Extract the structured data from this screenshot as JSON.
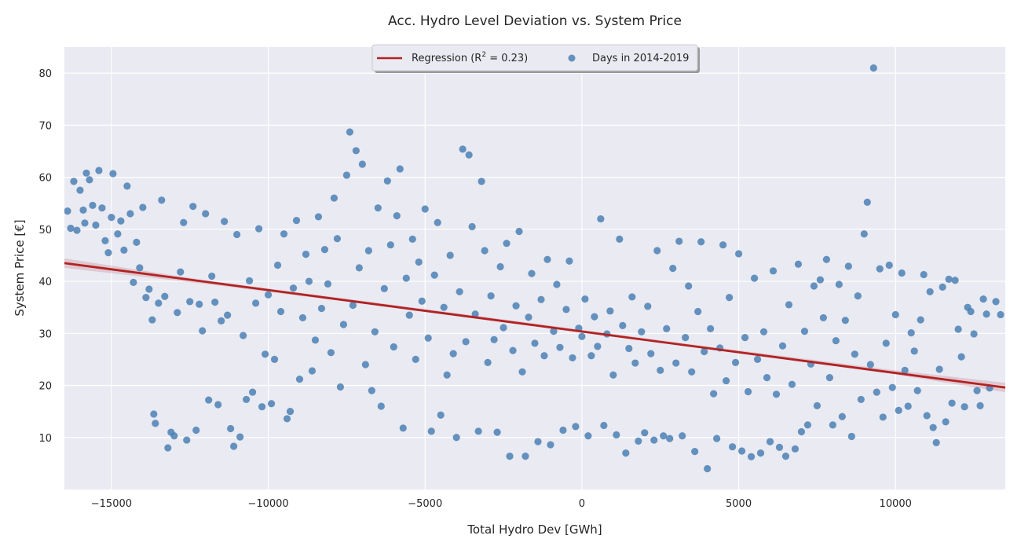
{
  "chart_data": {
    "type": "scatter",
    "title": "Acc. Hydro Level Deviation vs. System Price",
    "xlabel": "Total Hydro Dev [GWh]",
    "ylabel": "System Price [€]",
    "xlim": [
      -16500,
      13500
    ],
    "ylim": [
      0,
      85
    ],
    "xticks": [
      -15000,
      -10000,
      -5000,
      0,
      5000,
      10000
    ],
    "xtick_labels": [
      "−15000",
      "−10000",
      "−5000",
      "0",
      "5000",
      "10000"
    ],
    "yticks": [
      10,
      20,
      30,
      40,
      50,
      60,
      70,
      80
    ],
    "ytick_labels": [
      "10",
      "20",
      "30",
      "40",
      "50",
      "60",
      "70",
      "80"
    ],
    "grid": true,
    "legend_position": "top-center",
    "regression": {
      "label_prefix": "Regression (R",
      "label_sup": "2",
      "label_suffix": " = 0.23)",
      "color": "#b22222",
      "band_color": "#c87c84",
      "line": [
        [
          -16500,
          43.5
        ],
        [
          13500,
          19.6
        ]
      ],
      "band": [
        [
          -16500,
          44.4,
          42.6
        ],
        [
          -12000,
          40.2,
          39.5
        ],
        [
          -3000,
          33.1,
          32.7
        ],
        [
          4000,
          27.5,
          27.0
        ],
        [
          10000,
          22.9,
          22.1
        ],
        [
          13500,
          20.5,
          18.7
        ]
      ]
    },
    "scatter_series": {
      "name": "Days in 2014-2019",
      "color": "#4c80b4",
      "points": [
        [
          -16400,
          53.5
        ],
        [
          -16300,
          50.2
        ],
        [
          -16200,
          59.2
        ],
        [
          -16100,
          49.8
        ],
        [
          -16000,
          57.5
        ],
        [
          -15900,
          53.7
        ],
        [
          -15850,
          51.2
        ],
        [
          -15800,
          60.8
        ],
        [
          -15700,
          59.5
        ],
        [
          -15600,
          54.6
        ],
        [
          -15500,
          50.8
        ],
        [
          -15400,
          61.3
        ],
        [
          -15300,
          54.1
        ],
        [
          -15200,
          47.8
        ],
        [
          -15100,
          45.5
        ],
        [
          -15000,
          52.3
        ],
        [
          -14950,
          60.7
        ],
        [
          -14800,
          49.1
        ],
        [
          -14700,
          51.6
        ],
        [
          -14600,
          46.0
        ],
        [
          -14500,
          58.3
        ],
        [
          -14400,
          53.0
        ],
        [
          -14300,
          39.8
        ],
        [
          -14200,
          47.5
        ],
        [
          -14100,
          42.6
        ],
        [
          -14000,
          54.2
        ],
        [
          -13900,
          36.9
        ],
        [
          -13800,
          38.5
        ],
        [
          -13700,
          32.6
        ],
        [
          -13650,
          14.5
        ],
        [
          -13600,
          12.7
        ],
        [
          -13500,
          35.8
        ],
        [
          -13400,
          55.6
        ],
        [
          -13300,
          37.1
        ],
        [
          -13200,
          8.0
        ],
        [
          -13100,
          11.0
        ],
        [
          -13000,
          10.3
        ],
        [
          -12900,
          34.0
        ],
        [
          -12800,
          41.8
        ],
        [
          -12700,
          51.3
        ],
        [
          -12600,
          9.5
        ],
        [
          -12500,
          36.1
        ],
        [
          -12400,
          54.4
        ],
        [
          -12300,
          11.4
        ],
        [
          -12200,
          35.6
        ],
        [
          -12100,
          30.5
        ],
        [
          -12000,
          53.0
        ],
        [
          -11900,
          17.2
        ],
        [
          -11800,
          41.0
        ],
        [
          -11700,
          36.0
        ],
        [
          -11600,
          16.3
        ],
        [
          -11500,
          32.4
        ],
        [
          -11400,
          51.5
        ],
        [
          -11300,
          33.5
        ],
        [
          -11200,
          11.7
        ],
        [
          -11100,
          8.3
        ],
        [
          -11000,
          49.0
        ],
        [
          -10900,
          10.1
        ],
        [
          -10800,
          29.6
        ],
        [
          -10700,
          17.3
        ],
        [
          -10600,
          40.1
        ],
        [
          -10500,
          18.7
        ],
        [
          -10400,
          35.8
        ],
        [
          -10300,
          50.1
        ],
        [
          -10200,
          15.9
        ],
        [
          -10100,
          26.0
        ],
        [
          -10000,
          37.4
        ],
        [
          -9900,
          16.5
        ],
        [
          -9800,
          25.0
        ],
        [
          -9700,
          43.1
        ],
        [
          -9600,
          34.2
        ],
        [
          -9500,
          49.1
        ],
        [
          -9400,
          13.6
        ],
        [
          -9300,
          15.0
        ],
        [
          -9200,
          38.7
        ],
        [
          -9100,
          51.7
        ],
        [
          -9000,
          21.2
        ],
        [
          -8900,
          33.0
        ],
        [
          -8800,
          45.2
        ],
        [
          -8700,
          40.0
        ],
        [
          -8600,
          22.8
        ],
        [
          -8500,
          28.7
        ],
        [
          -8400,
          52.4
        ],
        [
          -8300,
          34.8
        ],
        [
          -8200,
          46.1
        ],
        [
          -8100,
          39.5
        ],
        [
          -8000,
          26.3
        ],
        [
          -7900,
          56.0
        ],
        [
          -7800,
          48.2
        ],
        [
          -7700,
          19.7
        ],
        [
          -7600,
          31.7
        ],
        [
          -7500,
          60.4
        ],
        [
          -7400,
          68.7
        ],
        [
          -7300,
          35.4
        ],
        [
          -7200,
          65.1
        ],
        [
          -7100,
          42.6
        ],
        [
          -7000,
          62.5
        ],
        [
          -6900,
          24.0
        ],
        [
          -6800,
          45.9
        ],
        [
          -6700,
          19.0
        ],
        [
          -6600,
          30.3
        ],
        [
          -6500,
          54.1
        ],
        [
          -6400,
          16.0
        ],
        [
          -6300,
          38.6
        ],
        [
          -6200,
          59.3
        ],
        [
          -6100,
          47.0
        ],
        [
          -6000,
          27.4
        ],
        [
          -5900,
          52.6
        ],
        [
          -5800,
          61.6
        ],
        [
          -5700,
          11.8
        ],
        [
          -5600,
          40.6
        ],
        [
          -5500,
          33.5
        ],
        [
          -5400,
          48.1
        ],
        [
          -5300,
          25.0
        ],
        [
          -5200,
          43.7
        ],
        [
          -5100,
          36.2
        ],
        [
          -5000,
          53.9
        ],
        [
          -4900,
          29.1
        ],
        [
          -4800,
          11.2
        ],
        [
          -4700,
          41.2
        ],
        [
          -4600,
          51.3
        ],
        [
          -4500,
          14.3
        ],
        [
          -4400,
          35.0
        ],
        [
          -4300,
          22.0
        ],
        [
          -4200,
          45.0
        ],
        [
          -4100,
          26.1
        ],
        [
          -4000,
          10.0
        ],
        [
          -3900,
          38.0
        ],
        [
          -3800,
          65.4
        ],
        [
          -3700,
          28.4
        ],
        [
          -3600,
          64.3
        ],
        [
          -3500,
          50.5
        ],
        [
          -3400,
          33.7
        ],
        [
          -3300,
          11.2
        ],
        [
          -3200,
          59.2
        ],
        [
          -3100,
          45.9
        ],
        [
          -3000,
          24.4
        ],
        [
          -2900,
          37.2
        ],
        [
          -2800,
          28.8
        ],
        [
          -2700,
          11.0
        ],
        [
          -2600,
          42.8
        ],
        [
          -2500,
          31.1
        ],
        [
          -2400,
          47.3
        ],
        [
          -2300,
          6.4
        ],
        [
          -2200,
          26.7
        ],
        [
          -2100,
          35.3
        ],
        [
          -2000,
          49.6
        ],
        [
          -1900,
          22.6
        ],
        [
          -1800,
          6.4
        ],
        [
          -1700,
          33.1
        ],
        [
          -1600,
          41.5
        ],
        [
          -1500,
          28.1
        ],
        [
          -1400,
          9.2
        ],
        [
          -1300,
          36.5
        ],
        [
          -1200,
          25.7
        ],
        [
          -1100,
          44.2
        ],
        [
          -1000,
          8.6
        ],
        [
          -900,
          30.4
        ],
        [
          -800,
          39.4
        ],
        [
          -700,
          27.3
        ],
        [
          -600,
          11.4
        ],
        [
          -500,
          34.6
        ],
        [
          -400,
          43.9
        ],
        [
          -300,
          25.3
        ],
        [
          -200,
          12.1
        ],
        [
          -100,
          31.0
        ],
        [
          0,
          29.4
        ],
        [
          100,
          36.6
        ],
        [
          200,
          10.3
        ],
        [
          300,
          25.7
        ],
        [
          400,
          33.2
        ],
        [
          500,
          27.5
        ],
        [
          600,
          52.0
        ],
        [
          700,
          12.3
        ],
        [
          800,
          29.9
        ],
        [
          900,
          34.3
        ],
        [
          1000,
          22.0
        ],
        [
          1100,
          10.5
        ],
        [
          1200,
          48.1
        ],
        [
          1300,
          31.5
        ],
        [
          1400,
          7.0
        ],
        [
          1500,
          27.1
        ],
        [
          1600,
          37.0
        ],
        [
          1700,
          24.3
        ],
        [
          1800,
          9.3
        ],
        [
          1900,
          30.3
        ],
        [
          2000,
          10.9
        ],
        [
          2100,
          35.2
        ],
        [
          2200,
          26.1
        ],
        [
          2300,
          9.5
        ],
        [
          2400,
          45.9
        ],
        [
          2500,
          22.9
        ],
        [
          2600,
          10.3
        ],
        [
          2700,
          30.9
        ],
        [
          2800,
          9.8
        ],
        [
          2900,
          42.5
        ],
        [
          3000,
          24.3
        ],
        [
          3100,
          47.7
        ],
        [
          3200,
          10.3
        ],
        [
          3300,
          29.2
        ],
        [
          3400,
          39.1
        ],
        [
          3500,
          22.6
        ],
        [
          3600,
          7.3
        ],
        [
          3700,
          34.2
        ],
        [
          3800,
          47.6
        ],
        [
          3900,
          26.5
        ],
        [
          4000,
          4.0
        ],
        [
          4100,
          30.9
        ],
        [
          4200,
          18.4
        ],
        [
          4300,
          9.8
        ],
        [
          4400,
          27.2
        ],
        [
          4500,
          47.0
        ],
        [
          4600,
          20.9
        ],
        [
          4700,
          36.9
        ],
        [
          4800,
          8.2
        ],
        [
          4900,
          24.4
        ],
        [
          5000,
          45.3
        ],
        [
          5100,
          7.4
        ],
        [
          5200,
          29.2
        ],
        [
          5300,
          18.8
        ],
        [
          5400,
          6.3
        ],
        [
          5500,
          40.6
        ],
        [
          5600,
          25.0
        ],
        [
          5700,
          7.0
        ],
        [
          5800,
          30.3
        ],
        [
          5900,
          21.5
        ],
        [
          6000,
          9.2
        ],
        [
          6100,
          42.0
        ],
        [
          6200,
          18.3
        ],
        [
          6300,
          8.1
        ],
        [
          6400,
          27.6
        ],
        [
          6500,
          6.4
        ],
        [
          6600,
          35.5
        ],
        [
          6700,
          20.2
        ],
        [
          6800,
          7.8
        ],
        [
          6900,
          43.3
        ],
        [
          7000,
          11.1
        ],
        [
          7100,
          30.4
        ],
        [
          7200,
          12.4
        ],
        [
          7300,
          24.1
        ],
        [
          7400,
          39.1
        ],
        [
          7500,
          16.1
        ],
        [
          7600,
          40.3
        ],
        [
          7700,
          33.0
        ],
        [
          7800,
          44.2
        ],
        [
          7900,
          21.5
        ],
        [
          8000,
          12.4
        ],
        [
          8100,
          28.6
        ],
        [
          8200,
          39.4
        ],
        [
          8300,
          14.0
        ],
        [
          8400,
          32.5
        ],
        [
          8500,
          42.9
        ],
        [
          8600,
          10.2
        ],
        [
          8700,
          26.0
        ],
        [
          8800,
          37.2
        ],
        [
          8900,
          17.3
        ],
        [
          9000,
          49.1
        ],
        [
          9100,
          55.2
        ],
        [
          9200,
          24.0
        ],
        [
          9300,
          81.0
        ],
        [
          9400,
          18.7
        ],
        [
          9500,
          42.4
        ],
        [
          9600,
          13.9
        ],
        [
          9700,
          28.1
        ],
        [
          9800,
          43.1
        ],
        [
          9900,
          19.6
        ],
        [
          10000,
          33.6
        ],
        [
          10100,
          15.2
        ],
        [
          10200,
          41.6
        ],
        [
          10300,
          22.9
        ],
        [
          10400,
          16.0
        ],
        [
          10500,
          30.1
        ],
        [
          10600,
          26.6
        ],
        [
          10700,
          19.0
        ],
        [
          10800,
          32.6
        ],
        [
          10900,
          41.3
        ],
        [
          11000,
          14.2
        ],
        [
          11100,
          38.0
        ],
        [
          11200,
          11.9
        ],
        [
          11300,
          9.0
        ],
        [
          11400,
          23.1
        ],
        [
          11500,
          38.9
        ],
        [
          11600,
          13.0
        ],
        [
          11700,
          40.4
        ],
        [
          11800,
          16.6
        ],
        [
          11900,
          40.2
        ],
        [
          12000,
          30.8
        ],
        [
          12100,
          25.5
        ],
        [
          12200,
          15.9
        ],
        [
          12300,
          35.0
        ],
        [
          12400,
          34.2
        ],
        [
          12500,
          29.9
        ],
        [
          12600,
          19.0
        ],
        [
          12700,
          16.1
        ],
        [
          12800,
          36.6
        ],
        [
          12900,
          33.7
        ],
        [
          13000,
          19.5
        ],
        [
          13200,
          36.1
        ],
        [
          13350,
          33.6
        ]
      ]
    }
  }
}
